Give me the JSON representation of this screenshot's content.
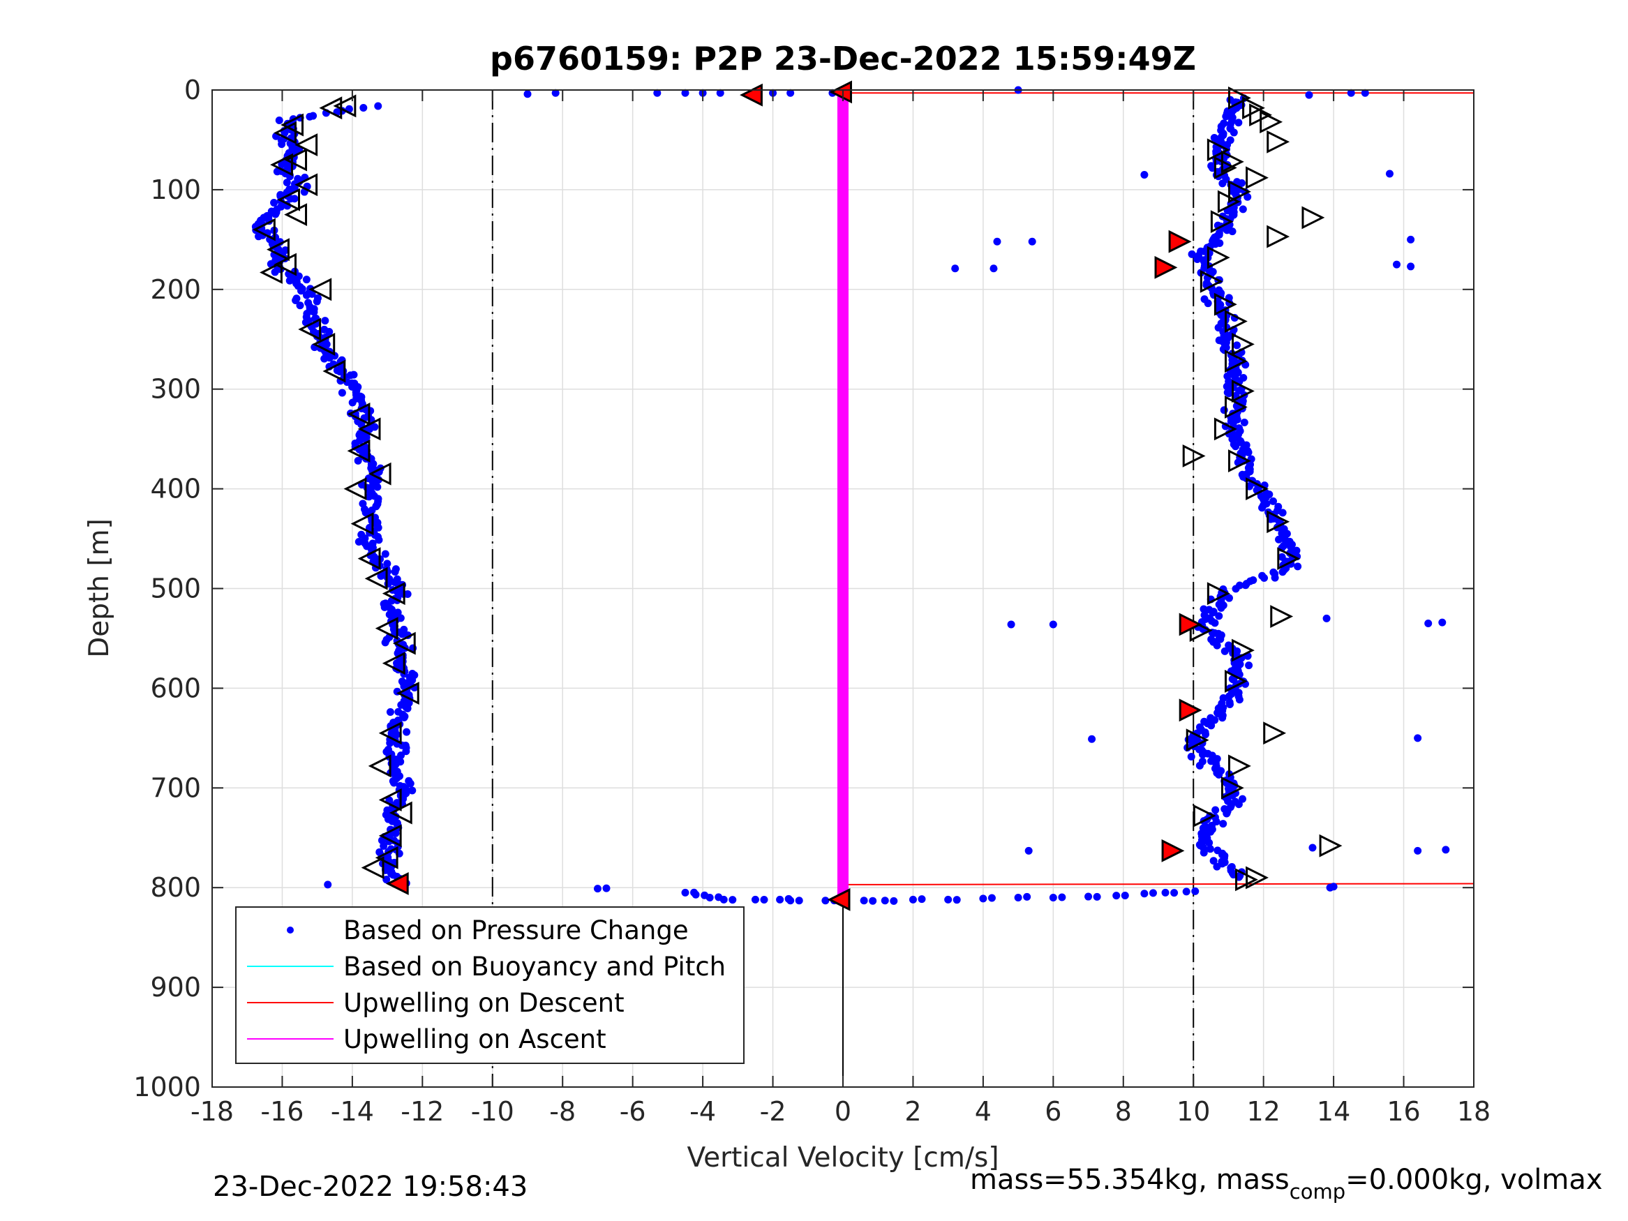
{
  "chart_data": {
    "type": "scatter",
    "title": "p6760159: P2P 23-Dec-2022 15:59:49Z",
    "xlabel": "Vertical Velocity [cm/s]",
    "ylabel": "Depth [m]",
    "xlim": [
      -18,
      18
    ],
    "ylim": [
      0,
      1000
    ],
    "y_reversed": true,
    "grid": true,
    "xticks": [
      "-18",
      "-16",
      "-14",
      "-12",
      "-10",
      "-8",
      "-6",
      "-4",
      "-2",
      "0",
      "2",
      "4",
      "6",
      "8",
      "10",
      "12",
      "14",
      "16",
      "18"
    ],
    "yticks": [
      "0",
      "100",
      "200",
      "300",
      "400",
      "500",
      "600",
      "700",
      "800",
      "900",
      "1000"
    ],
    "reference_lines": [
      {
        "orientation": "vertical",
        "x": -10,
        "style": "dash-dot",
        "color": "#000000"
      },
      {
        "orientation": "vertical",
        "x": 10,
        "style": "dash-dot",
        "color": "#000000"
      },
      {
        "orientation": "vertical",
        "x": 0,
        "y_from": 812,
        "y_to": 1000,
        "style": "solid",
        "color": "#000000"
      }
    ],
    "legend": {
      "position": "bottom-left",
      "entries": [
        {
          "label": "Based on Pressure Change",
          "marker": "dot",
          "color": "#0000ff"
        },
        {
          "label": "Based on Buoyancy and Pitch",
          "marker": "line",
          "color": "#00ffff"
        },
        {
          "label": "Upwelling on Descent",
          "marker": "line",
          "color": "#ff0000"
        },
        {
          "label": "Upwelling on Ascent",
          "marker": "line",
          "color": "#ff00ff"
        }
      ]
    },
    "series": [
      {
        "name": "Based on Pressure Change",
        "color": "#0000ff",
        "descent_profile": [
          [
            -13.5,
            16
          ],
          [
            -15.8,
            30
          ],
          [
            -16.0,
            45
          ],
          [
            -15.6,
            60
          ],
          [
            -16.0,
            75
          ],
          [
            -15.5,
            95
          ],
          [
            -16.0,
            115
          ],
          [
            -16.6,
            135
          ],
          [
            -16.3,
            155
          ],
          [
            -16.2,
            175
          ],
          [
            -15.5,
            190
          ],
          [
            -15.2,
            210
          ],
          [
            -15.0,
            235
          ],
          [
            -14.8,
            260
          ],
          [
            -14.2,
            285
          ],
          [
            -13.8,
            310
          ],
          [
            -13.6,
            335
          ],
          [
            -13.8,
            360
          ],
          [
            -13.3,
            385
          ],
          [
            -13.5,
            405
          ],
          [
            -13.4,
            430
          ],
          [
            -13.5,
            455
          ],
          [
            -13.2,
            475
          ],
          [
            -12.7,
            500
          ],
          [
            -12.9,
            525
          ],
          [
            -12.7,
            550
          ],
          [
            -12.6,
            575
          ],
          [
            -12.4,
            600
          ],
          [
            -12.7,
            625
          ],
          [
            -12.8,
            650
          ],
          [
            -12.8,
            675
          ],
          [
            -12.6,
            700
          ],
          [
            -12.8,
            725
          ],
          [
            -12.9,
            750
          ],
          [
            -13.0,
            775
          ],
          [
            -12.7,
            795
          ]
        ],
        "ascent_profile": [
          [
            11.3,
            8
          ],
          [
            11.1,
            25
          ],
          [
            10.8,
            45
          ],
          [
            10.7,
            65
          ],
          [
            10.8,
            85
          ],
          [
            11.4,
            105
          ],
          [
            11.0,
            125
          ],
          [
            10.6,
            150
          ],
          [
            10.3,
            165
          ],
          [
            10.5,
            190
          ],
          [
            10.7,
            210
          ],
          [
            10.9,
            230
          ],
          [
            11.0,
            250
          ],
          [
            11.2,
            270
          ],
          [
            11.2,
            290
          ],
          [
            11.3,
            310
          ],
          [
            11.2,
            335
          ],
          [
            11.3,
            355
          ],
          [
            11.5,
            380
          ],
          [
            11.9,
            405
          ],
          [
            12.4,
            425
          ],
          [
            12.5,
            445
          ],
          [
            12.8,
            465
          ],
          [
            12.7,
            480
          ],
          [
            10.8,
            505
          ],
          [
            10.6,
            520
          ],
          [
            10.3,
            540
          ],
          [
            11.2,
            565
          ],
          [
            11.3,
            590
          ],
          [
            11.1,
            615
          ],
          [
            10.4,
            635
          ],
          [
            10.0,
            655
          ],
          [
            10.4,
            675
          ],
          [
            11.0,
            695
          ],
          [
            11.2,
            715
          ],
          [
            10.5,
            735
          ],
          [
            10.3,
            760
          ],
          [
            11.3,
            790
          ]
        ],
        "surface_transition": [
          [
            -9.0,
            4
          ],
          [
            -8.2,
            3
          ],
          [
            -5.3,
            3
          ],
          [
            -4.5,
            3
          ],
          [
            -4.0,
            3
          ],
          [
            -3.5,
            3
          ],
          [
            -2.0,
            3
          ],
          [
            -1.5,
            3
          ],
          [
            -0.3,
            3
          ]
        ],
        "bottom_transition": [
          [
            -7.0,
            801
          ],
          [
            -4.5,
            805
          ],
          [
            -4.2,
            807
          ],
          [
            -3.8,
            810
          ],
          [
            -3.4,
            812
          ],
          [
            -2.5,
            812
          ],
          [
            -1.8,
            812
          ],
          [
            -1.5,
            813
          ],
          [
            -0.5,
            813
          ],
          [
            0.6,
            813
          ],
          [
            1.2,
            813
          ],
          [
            2.0,
            812
          ],
          [
            3.0,
            812
          ],
          [
            4.0,
            811
          ],
          [
            5.0,
            810
          ],
          [
            6.0,
            810
          ],
          [
            7.0,
            809
          ],
          [
            7.8,
            808
          ],
          [
            8.6,
            806
          ],
          [
            9.2,
            805
          ],
          [
            9.8,
            804
          ]
        ],
        "outliers": [
          [
            5.0,
            0
          ],
          [
            14.5,
            3
          ],
          [
            14.9,
            3
          ],
          [
            13.3,
            5
          ],
          [
            8.6,
            85
          ],
          [
            15.6,
            84
          ],
          [
            4.4,
            152
          ],
          [
            5.4,
            152
          ],
          [
            16.2,
            150
          ],
          [
            3.2,
            179
          ],
          [
            4.3,
            179
          ],
          [
            15.8,
            175
          ],
          [
            16.2,
            177
          ],
          [
            4.8,
            536
          ],
          [
            6.0,
            536
          ],
          [
            16.7,
            535
          ],
          [
            17.1,
            534
          ],
          [
            13.8,
            530
          ],
          [
            7.1,
            651
          ],
          [
            16.4,
            650
          ],
          [
            5.3,
            763
          ],
          [
            13.4,
            760
          ],
          [
            16.4,
            763
          ],
          [
            17.2,
            762
          ],
          [
            -14.7,
            797
          ],
          [
            13.9,
            800
          ],
          [
            14.0,
            799
          ]
        ]
      },
      {
        "name": "Upwelling on Descent",
        "color": "#ff0000",
        "segments": [
          {
            "x": [
              0.05,
              18
            ],
            "y": [
              3,
              3
            ]
          },
          {
            "x": [
              0.05,
              18
            ],
            "y": [
              797,
              796
            ]
          }
        ]
      },
      {
        "name": "Upwelling on Ascent",
        "color": "#ff00ff",
        "segments": [
          {
            "x": [
              0,
              0
            ],
            "y": [
              3,
              812
            ]
          }
        ]
      }
    ],
    "triangle_markers": {
      "open": [
        [
          -14.6,
          18
        ],
        [
          -14.2,
          16
        ],
        [
          -15.7,
          35
        ],
        [
          -15.9,
          43
        ],
        [
          -15.3,
          55
        ],
        [
          -15.6,
          70
        ],
        [
          -16.0,
          75
        ],
        [
          -15.3,
          95
        ],
        [
          -15.8,
          110
        ],
        [
          -15.6,
          125
        ],
        [
          -16.5,
          140
        ],
        [
          -16.1,
          160
        ],
        [
          -15.9,
          175
        ],
        [
          -16.3,
          183
        ],
        [
          -14.9,
          200
        ],
        [
          -15.2,
          240
        ],
        [
          -14.8,
          255
        ],
        [
          -14.5,
          282
        ],
        [
          -13.8,
          325
        ],
        [
          -13.5,
          340
        ],
        [
          -13.8,
          362
        ],
        [
          -13.2,
          385
        ],
        [
          -13.9,
          400
        ],
        [
          -13.7,
          435
        ],
        [
          -13.5,
          470
        ],
        [
          -13.3,
          490
        ],
        [
          -12.8,
          505
        ],
        [
          -13.0,
          540
        ],
        [
          -12.5,
          555
        ],
        [
          -12.8,
          575
        ],
        [
          -12.4,
          605
        ],
        [
          -12.9,
          645
        ],
        [
          -13.2,
          678
        ],
        [
          -12.9,
          712
        ],
        [
          -12.6,
          725
        ],
        [
          -12.9,
          748
        ],
        [
          -13.4,
          780
        ],
        [
          -13.0,
          770
        ],
        [
          11.3,
          8
        ],
        [
          11.7,
          18
        ],
        [
          11.9,
          25
        ],
        [
          12.2,
          32
        ],
        [
          12.4,
          52
        ],
        [
          10.7,
          60
        ],
        [
          11.1,
          72
        ],
        [
          10.9,
          78
        ],
        [
          11.8,
          88
        ],
        [
          11.3,
          102
        ],
        [
          11.0,
          112
        ],
        [
          10.8,
          132
        ],
        [
          13.4,
          128
        ],
        [
          12.4,
          147
        ],
        [
          10.7,
          168
        ],
        [
          10.5,
          192
        ],
        [
          10.9,
          215
        ],
        [
          11.2,
          232
        ],
        [
          11.4,
          255
        ],
        [
          11.2,
          272
        ],
        [
          11.4,
          302
        ],
        [
          11.2,
          318
        ],
        [
          10.9,
          340
        ],
        [
          10.0,
          367
        ],
        [
          11.3,
          372
        ],
        [
          11.8,
          400
        ],
        [
          12.4,
          433
        ],
        [
          12.7,
          470
        ],
        [
          10.7,
          505
        ],
        [
          12.5,
          528
        ],
        [
          10.2,
          542
        ],
        [
          11.4,
          562
        ],
        [
          11.2,
          593
        ],
        [
          12.3,
          645
        ],
        [
          10.1,
          652
        ],
        [
          11.3,
          678
        ],
        [
          11.1,
          700
        ],
        [
          10.3,
          728
        ],
        [
          13.9,
          758
        ],
        [
          11.5,
          792
        ],
        [
          11.8,
          790
        ]
      ],
      "filled": [
        [
          -2.6,
          5
        ],
        [
          -0.05,
          2
        ],
        [
          -12.7,
          796
        ],
        [
          -0.1,
          812
        ],
        [
          9.6,
          152
        ],
        [
          9.2,
          178
        ],
        [
          9.9,
          536
        ],
        [
          9.9,
          622
        ],
        [
          9.4,
          763
        ]
      ]
    }
  },
  "footer": {
    "left": "23-Dec-2022 19:58:43",
    "right_prefix": "mass=55.354kg, mass",
    "right_sub": "comp",
    "right_suffix": "=0.000kg, volmax"
  }
}
